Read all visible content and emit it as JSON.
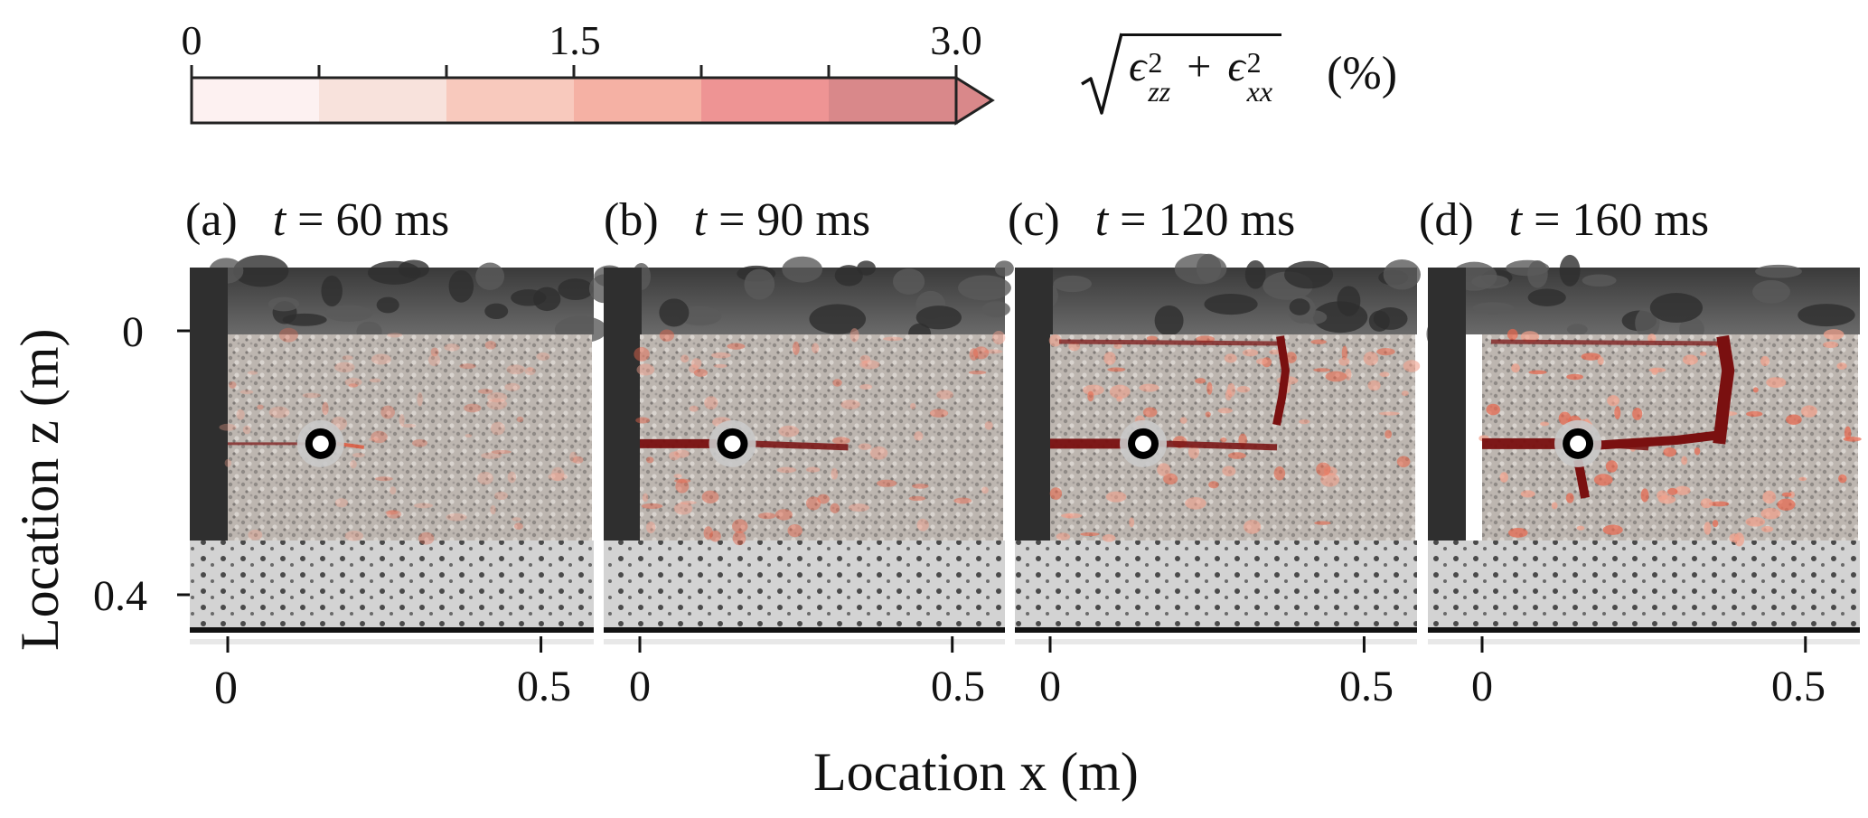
{
  "colorbar": {
    "tick_labels": [
      {
        "label": "0",
        "value": 0
      },
      {
        "label": "1.5",
        "value": 1.5
      },
      {
        "label": "3.0",
        "value": 3.0
      }
    ],
    "levels": [
      0,
      0.5,
      1.0,
      1.5,
      2.0,
      2.5,
      3.0
    ],
    "colors": [
      "#fdf1f1",
      "#f8e2dc",
      "#f8c9bd",
      "#f5b1a4",
      "#ee9494",
      "#d9888a"
    ],
    "extend": "max",
    "formula": "√(ϵ²zz + ϵ²xx)",
    "formula_parts": {
      "sym1": "ϵ",
      "sub1": "zz",
      "sup1": "2",
      "plus": "+",
      "sym2": "ϵ",
      "sub2": "xx",
      "sup2": "2"
    },
    "unit": "(%)"
  },
  "panels": [
    {
      "letter": "(a)",
      "t_label": "t",
      "time": "= 60 ms",
      "crack_stage": 0
    },
    {
      "letter": "(b)",
      "t_label": "t",
      "time": "= 90 ms",
      "crack_stage": 1
    },
    {
      "letter": "(c)",
      "t_label": "t",
      "time": "= 120 ms",
      "crack_stage": 2
    },
    {
      "letter": "(d)",
      "t_label": "t",
      "time": "= 160 ms",
      "crack_stage": 3
    }
  ],
  "x_axis": {
    "label": "Location x (m)",
    "ticks": [
      {
        "label": "0",
        "value": 0
      },
      {
        "label": "0.5",
        "value": 0.5
      }
    ]
  },
  "y_axis": {
    "label": "Location z (m)",
    "ticks": [
      {
        "label": "0",
        "value": 0
      },
      {
        "label": "0.4",
        "value": 0.4
      }
    ]
  },
  "colors": {
    "crack": "#7a1010",
    "strain_light": "#f3a38f",
    "background_dark": "#3c3c3c",
    "background_light": "#d2d2d2",
    "specimen_gray": "#b9b3ae"
  }
}
